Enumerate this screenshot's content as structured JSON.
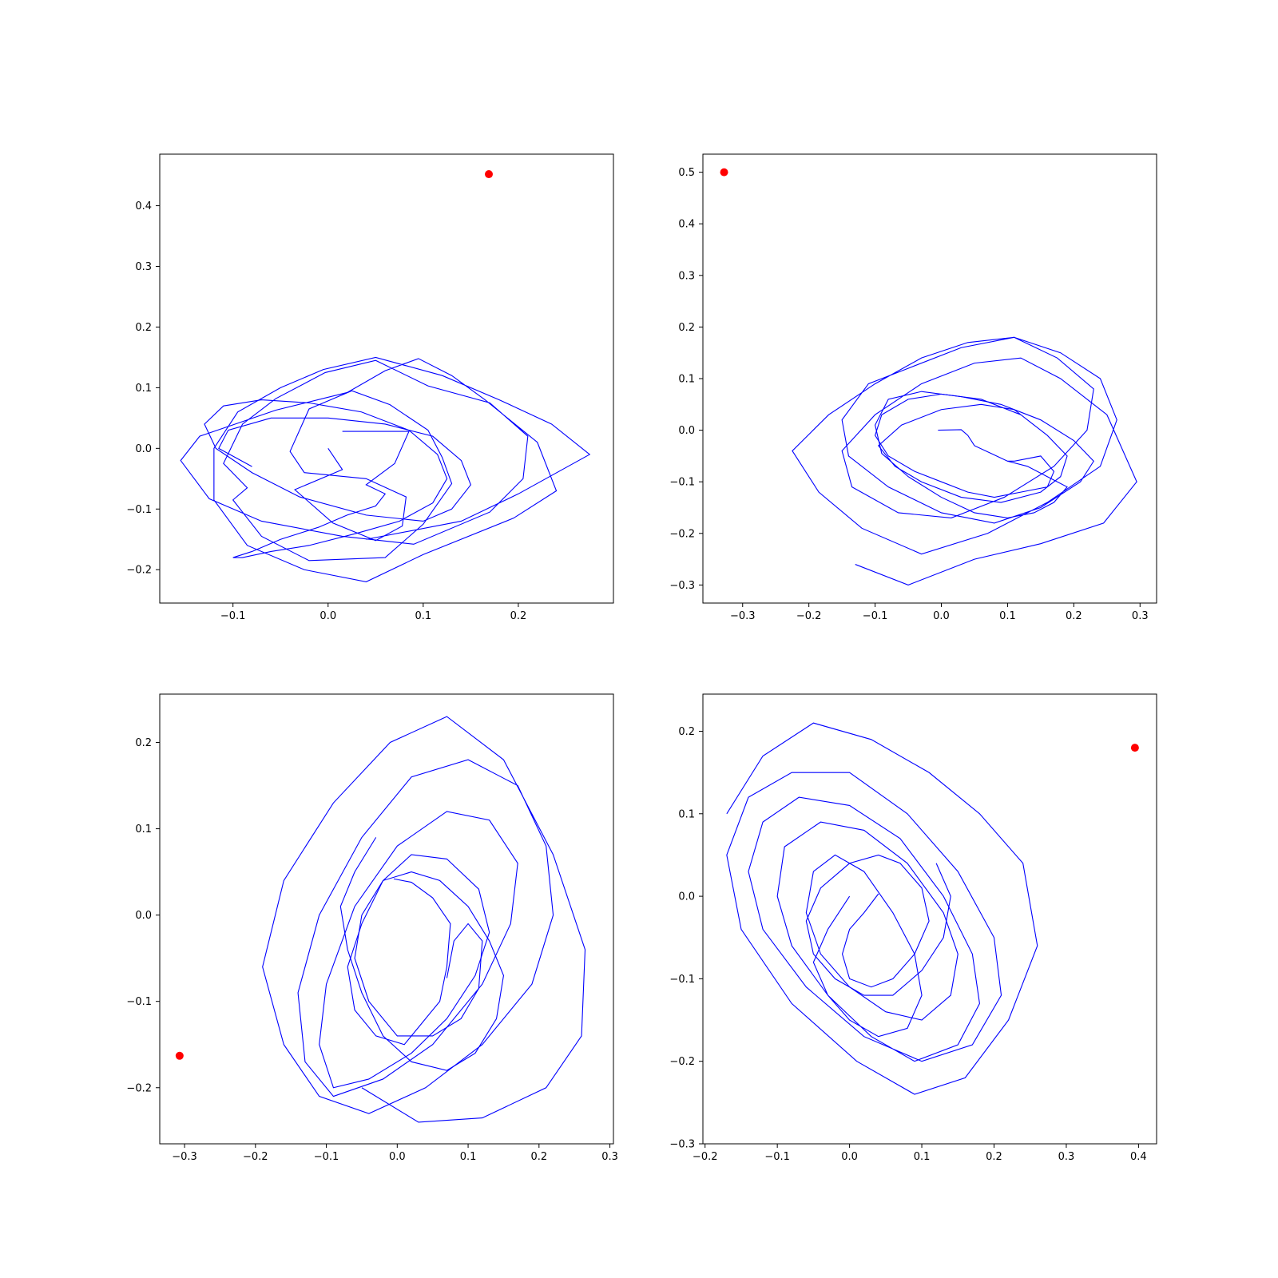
{
  "chart_data": [
    {
      "type": "line",
      "title": "",
      "xlabel": "",
      "ylabel": "",
      "xlim": [
        -0.177,
        0.3
      ],
      "ylim": [
        -0.255,
        0.485
      ],
      "x_ticks": [
        -0.1,
        0.0,
        0.1,
        0.2
      ],
      "y_ticks": [
        -0.2,
        -0.1,
        0.0,
        0.1,
        0.2,
        0.3,
        0.4
      ],
      "x_tick_labels": [
        "−0.1",
        "0.0",
        "0.1",
        "0.2"
      ],
      "y_tick_labels": [
        "−0.2",
        "−0.1",
        "0.0",
        "0.1",
        "0.2",
        "0.3",
        "0.4"
      ],
      "grid": false,
      "series": [
        {
          "color": "#0000ff",
          "x": [
            0.0,
            0.015,
            -0.035,
            0.005,
            0.05,
            0.078,
            0.082,
            0.04,
            -0.025,
            -0.04,
            -0.02,
            0.025,
            0.065,
            0.105,
            0.12,
            0.13,
            0.1,
            0.06,
            -0.02,
            -0.07,
            -0.1,
            -0.085,
            -0.11,
            -0.09,
            -0.055,
            -0.003,
            0.05,
            0.105,
            0.17,
            0.21,
            0.205,
            0.17,
            0.09,
            0.015,
            -0.07,
            -0.125,
            -0.155,
            -0.135,
            -0.055,
            0.02,
            0.06,
            0.095,
            0.13,
            0.165,
            0.22,
            0.24,
            0.195,
            0.1,
            0.04,
            -0.025,
            -0.085,
            -0.12,
            -0.12,
            -0.095,
            -0.05,
            -0.005,
            0.05,
            0.12,
            0.18,
            0.235,
            0.275,
            0.2,
            0.14,
            0.04
          ],
          "y": [
            0.0,
            -0.035,
            -0.068,
            -0.123,
            -0.152,
            -0.128,
            -0.08,
            -0.05,
            -0.04,
            -0.005,
            0.065,
            0.095,
            0.072,
            0.03,
            -0.015,
            -0.058,
            -0.125,
            -0.18,
            -0.185,
            -0.145,
            -0.085,
            -0.065,
            -0.025,
            0.04,
            0.082,
            0.125,
            0.145,
            0.103,
            0.075,
            0.02,
            -0.05,
            -0.105,
            -0.158,
            -0.145,
            -0.12,
            -0.083,
            -0.02,
            0.02,
            0.063,
            0.092,
            0.128,
            0.148,
            0.12,
            0.08,
            0.01,
            -0.07,
            -0.115,
            -0.175,
            -0.22,
            -0.2,
            -0.16,
            -0.085,
            0.0,
            0.06,
            0.1,
            0.13,
            0.15,
            0.12,
            0.08,
            0.04,
            -0.01,
            -0.075,
            -0.12,
            -0.15
          ]
        },
        {
          "color": "#0000ff",
          "x": [
            0.015,
            0.055,
            0.085,
            0.07,
            0.04,
            0.06,
            0.05,
            0.02,
            -0.01,
            -0.05,
            -0.08,
            -0.1,
            -0.09,
            -0.06,
            -0.02,
            0.03,
            0.075,
            0.11,
            0.125,
            0.115,
            0.085,
            0.035,
            -0.02,
            -0.07,
            -0.11,
            -0.13,
            -0.118,
            -0.08,
            -0.03,
            0.04,
            0.1,
            0.13,
            0.15,
            0.14,
            0.11,
            0.06,
            0.0,
            -0.06,
            -0.105,
            -0.115,
            -0.08
          ],
          "y": [
            0.028,
            0.028,
            0.028,
            -0.025,
            -0.06,
            -0.075,
            -0.095,
            -0.11,
            -0.13,
            -0.15,
            -0.17,
            -0.18,
            -0.18,
            -0.17,
            -0.16,
            -0.14,
            -0.12,
            -0.09,
            -0.05,
            -0.01,
            0.03,
            0.06,
            0.075,
            0.08,
            0.07,
            0.04,
            0.0,
            -0.04,
            -0.08,
            -0.11,
            -0.12,
            -0.1,
            -0.06,
            -0.02,
            0.02,
            0.04,
            0.05,
            0.05,
            0.03,
            0.0,
            -0.03
          ]
        },
        {
          "type": "scatter",
          "color": "#ff0000",
          "x": [
            0.169
          ],
          "y": [
            0.452
          ]
        }
      ]
    },
    {
      "type": "line",
      "title": "",
      "xlabel": "",
      "ylabel": "",
      "xlim": [
        -0.36,
        0.325
      ],
      "ylim": [
        -0.335,
        0.535
      ],
      "x_ticks": [
        -0.3,
        -0.2,
        -0.1,
        0.0,
        0.1,
        0.2,
        0.3
      ],
      "y_ticks": [
        -0.3,
        -0.2,
        -0.1,
        0.0,
        0.1,
        0.2,
        0.3,
        0.4,
        0.5
      ],
      "x_tick_labels": [
        "−0.3",
        "−0.2",
        "−0.1",
        "0.0",
        "0.1",
        "0.2",
        "0.3"
      ],
      "y_tick_labels": [
        "−0.3",
        "−0.2",
        "−0.1",
        "0.0",
        "0.1",
        "0.2",
        "0.3",
        "0.4",
        "0.5"
      ],
      "grid": false,
      "series": [
        {
          "color": "#0000ff",
          "x": [
            -0.005,
            0.03,
            0.04,
            0.05,
            0.075,
            0.1,
            0.13,
            0.16,
            0.19,
            0.17,
            0.14,
            0.1,
            0.05,
            0.0,
            -0.05,
            -0.09,
            -0.1,
            -0.08,
            -0.03,
            0.03,
            0.09,
            0.15,
            0.2,
            0.23,
            0.21,
            0.15,
            0.08,
            0.0,
            -0.08,
            -0.14,
            -0.15,
            -0.11,
            -0.05,
            0.03,
            0.11,
            0.18,
            0.24,
            0.265,
            0.24,
            0.16,
            0.07,
            -0.03,
            -0.12,
            -0.185,
            -0.225,
            -0.17,
            -0.1,
            -0.03,
            0.04,
            0.11,
            0.175,
            0.23,
            0.22,
            0.17,
            0.095,
            0.015,
            -0.065,
            -0.135,
            -0.15,
            -0.1,
            -0.03,
            0.05,
            0.12,
            0.18,
            0.25,
            0.295,
            0.245,
            0.15,
            0.05,
            -0.05,
            -0.13
          ],
          "y": [
            0.0,
            0.001,
            -0.01,
            -0.03,
            -0.045,
            -0.06,
            -0.07,
            -0.09,
            -0.11,
            -0.14,
            -0.16,
            -0.17,
            -0.16,
            -0.13,
            -0.09,
            -0.045,
            0.01,
            0.06,
            0.075,
            0.065,
            0.05,
            0.02,
            -0.02,
            -0.06,
            -0.1,
            -0.15,
            -0.18,
            -0.16,
            -0.11,
            -0.05,
            0.02,
            0.09,
            0.12,
            0.16,
            0.18,
            0.15,
            0.1,
            0.02,
            -0.07,
            -0.14,
            -0.2,
            -0.24,
            -0.19,
            -0.12,
            -0.04,
            0.03,
            0.09,
            0.14,
            0.17,
            0.18,
            0.14,
            0.08,
            0.0,
            -0.07,
            -0.13,
            -0.17,
            -0.16,
            -0.11,
            -0.04,
            0.03,
            0.09,
            0.13,
            0.14,
            0.1,
            0.03,
            -0.1,
            -0.18,
            -0.22,
            -0.25,
            -0.3,
            -0.26
          ]
        },
        {
          "color": "#0000ff",
          "x": [
            0.1,
            0.11,
            0.15,
            0.17,
            0.16,
            0.12,
            0.08,
            0.04,
            0.0,
            -0.04,
            -0.08,
            -0.1,
            -0.09,
            -0.05,
            0.0,
            0.06,
            0.12,
            0.16,
            0.19,
            0.18,
            0.15,
            0.09,
            0.03,
            -0.03,
            -0.07,
            -0.095,
            -0.06,
            0.0,
            0.06,
            0.11,
            0.14
          ],
          "y": [
            -0.06,
            -0.06,
            -0.05,
            -0.08,
            -0.11,
            -0.12,
            -0.13,
            -0.12,
            -0.1,
            -0.08,
            -0.05,
            -0.01,
            0.03,
            0.06,
            0.07,
            0.06,
            0.03,
            -0.01,
            -0.05,
            -0.09,
            -0.12,
            -0.14,
            -0.13,
            -0.1,
            -0.07,
            -0.03,
            0.01,
            0.04,
            0.05,
            0.04,
            0.01
          ]
        },
        {
          "type": "scatter",
          "color": "#ff0000",
          "x": [
            -0.328
          ],
          "y": [
            0.5
          ]
        }
      ]
    },
    {
      "type": "line",
      "title": "",
      "xlabel": "",
      "ylabel": "",
      "xlim": [
        -0.335,
        0.305
      ],
      "ylim": [
        -0.265,
        0.256
      ],
      "x_ticks": [
        -0.3,
        -0.2,
        -0.1,
        0.0,
        0.1,
        0.2,
        0.3
      ],
      "y_ticks": [
        -0.2,
        -0.1,
        0.0,
        0.1,
        0.2
      ],
      "x_tick_labels": [
        "−0.3",
        "−0.2",
        "−0.1",
        "0.0",
        "0.1",
        "0.2",
        "0.3"
      ],
      "y_tick_labels": [
        "−0.2",
        "−0.1",
        "0.0",
        "0.1",
        "0.2"
      ],
      "grid": false,
      "series": [
        {
          "color": "#0000ff",
          "x": [
            -0.005,
            0.02,
            0.05,
            0.075,
            0.07,
            0.06,
            0.03,
            0.01,
            -0.03,
            -0.06,
            -0.07,
            -0.05,
            -0.02,
            0.02,
            0.07,
            0.115,
            0.13,
            0.11,
            0.07,
            0.02,
            -0.04,
            -0.09,
            -0.11,
            -0.1,
            -0.06,
            0.0,
            0.07,
            0.13,
            0.17,
            0.16,
            0.12,
            0.05,
            -0.02,
            -0.09,
            -0.13,
            -0.14,
            -0.11,
            -0.05,
            0.02,
            0.1,
            0.17,
            0.21,
            0.22,
            0.19,
            0.12,
            0.04,
            -0.04,
            -0.11,
            -0.16,
            -0.19,
            -0.16,
            -0.09,
            -0.01,
            0.07,
            0.15,
            0.22,
            0.265,
            0.26,
            0.21,
            0.12,
            0.03,
            -0.05
          ],
          "y": [
            0.042,
            0.038,
            0.02,
            -0.01,
            -0.06,
            -0.1,
            -0.13,
            -0.15,
            -0.14,
            -0.11,
            -0.06,
            -0.01,
            0.04,
            0.07,
            0.065,
            0.03,
            -0.02,
            -0.07,
            -0.12,
            -0.16,
            -0.19,
            -0.2,
            -0.15,
            -0.08,
            0.01,
            0.08,
            0.12,
            0.11,
            0.06,
            -0.01,
            -0.08,
            -0.15,
            -0.19,
            -0.21,
            -0.17,
            -0.09,
            0.0,
            0.09,
            0.16,
            0.18,
            0.15,
            0.08,
            0.0,
            -0.08,
            -0.15,
            -0.2,
            -0.23,
            -0.21,
            -0.15,
            -0.06,
            0.04,
            0.13,
            0.2,
            0.23,
            0.18,
            0.07,
            -0.04,
            -0.14,
            -0.2,
            -0.235,
            -0.24,
            -0.2
          ]
        },
        {
          "color": "#0000ff",
          "x": [
            0.07,
            0.08,
            0.1,
            0.12,
            0.115,
            0.09,
            0.05,
            0.0,
            -0.04,
            -0.06,
            -0.05,
            -0.02,
            0.02,
            0.06,
            0.1,
            0.13,
            0.15,
            0.14,
            0.11,
            0.07,
            0.02,
            -0.02,
            -0.05,
            -0.07,
            -0.08,
            -0.06,
            -0.03
          ],
          "y": [
            -0.073,
            -0.03,
            -0.01,
            -0.03,
            -0.085,
            -0.12,
            -0.14,
            -0.14,
            -0.1,
            -0.05,
            0.0,
            0.04,
            0.05,
            0.04,
            0.01,
            -0.03,
            -0.07,
            -0.12,
            -0.16,
            -0.18,
            -0.17,
            -0.14,
            -0.09,
            -0.04,
            0.01,
            0.05,
            0.09
          ]
        },
        {
          "type": "scatter",
          "color": "#ff0000",
          "x": [
            -0.307
          ],
          "y": [
            -0.163
          ]
        }
      ]
    },
    {
      "type": "line",
      "title": "",
      "xlabel": "",
      "ylabel": "",
      "xlim": [
        -0.203,
        0.425
      ],
      "ylim": [
        -0.3,
        0.245
      ],
      "x_ticks": [
        -0.2,
        -0.1,
        0.0,
        0.1,
        0.2,
        0.3,
        0.4
      ],
      "y_ticks": [
        -0.3,
        -0.2,
        -0.1,
        0.0,
        0.1,
        0.2
      ],
      "x_tick_labels": [
        "−0.2",
        "−0.1",
        "0.0",
        "0.1",
        "0.2",
        "0.3",
        "0.4"
      ],
      "y_tick_labels": [
        "−0.3",
        "−0.2",
        "−0.1",
        "0.0",
        "0.1",
        "0.2"
      ],
      "grid": false,
      "series": [
        {
          "color": "#0000ff",
          "x": [
            0.0,
            -0.03,
            -0.05,
            -0.03,
            0.0,
            0.04,
            0.08,
            0.1,
            0.09,
            0.06,
            0.02,
            -0.02,
            -0.05,
            -0.06,
            -0.04,
            0.0,
            0.05,
            0.1,
            0.14,
            0.15,
            0.13,
            0.08,
            0.02,
            -0.04,
            -0.09,
            -0.1,
            -0.08,
            -0.03,
            0.03,
            0.09,
            0.15,
            0.18,
            0.17,
            0.13,
            0.07,
            0.0,
            -0.07,
            -0.12,
            -0.14,
            -0.12,
            -0.06,
            0.02,
            0.1,
            0.17,
            0.21,
            0.2,
            0.15,
            0.08,
            0.0,
            -0.08,
            -0.14,
            -0.17,
            -0.15,
            -0.08,
            0.01,
            0.09,
            0.16,
            0.22,
            0.26,
            0.24,
            0.18,
            0.11,
            0.03,
            -0.05,
            -0.12,
            -0.17
          ],
          "y": [
            0.0,
            -0.04,
            -0.08,
            -0.12,
            -0.15,
            -0.17,
            -0.16,
            -0.12,
            -0.07,
            -0.02,
            0.03,
            0.05,
            0.03,
            -0.02,
            -0.07,
            -0.11,
            -0.14,
            -0.15,
            -0.12,
            -0.07,
            -0.02,
            0.04,
            0.08,
            0.09,
            0.06,
            0.0,
            -0.06,
            -0.12,
            -0.17,
            -0.2,
            -0.18,
            -0.13,
            -0.07,
            0.0,
            0.07,
            0.11,
            0.12,
            0.09,
            0.03,
            -0.04,
            -0.11,
            -0.17,
            -0.2,
            -0.18,
            -0.12,
            -0.05,
            0.03,
            0.1,
            0.15,
            0.15,
            0.12,
            0.05,
            -0.04,
            -0.13,
            -0.2,
            -0.24,
            -0.22,
            -0.15,
            -0.06,
            0.04,
            0.1,
            0.15,
            0.19,
            0.21,
            0.17,
            0.1
          ]
        },
        {
          "color": "#0000ff",
          "x": [
            0.04,
            0.02,
            0.0,
            -0.01,
            0.0,
            0.03,
            0.06,
            0.09,
            0.11,
            0.1,
            0.07,
            0.04,
            0.0,
            -0.04,
            -0.06,
            -0.05,
            -0.02,
            0.02,
            0.06,
            0.1,
            0.13,
            0.14,
            0.12
          ],
          "y": [
            0.003,
            -0.02,
            -0.04,
            -0.07,
            -0.1,
            -0.11,
            -0.1,
            -0.07,
            -0.03,
            0.01,
            0.04,
            0.05,
            0.04,
            0.01,
            -0.03,
            -0.07,
            -0.1,
            -0.12,
            -0.12,
            -0.09,
            -0.05,
            0.0,
            0.04
          ]
        },
        {
          "type": "scatter",
          "color": "#ff0000",
          "x": [
            0.395
          ],
          "y": [
            0.18
          ]
        }
      ]
    }
  ]
}
